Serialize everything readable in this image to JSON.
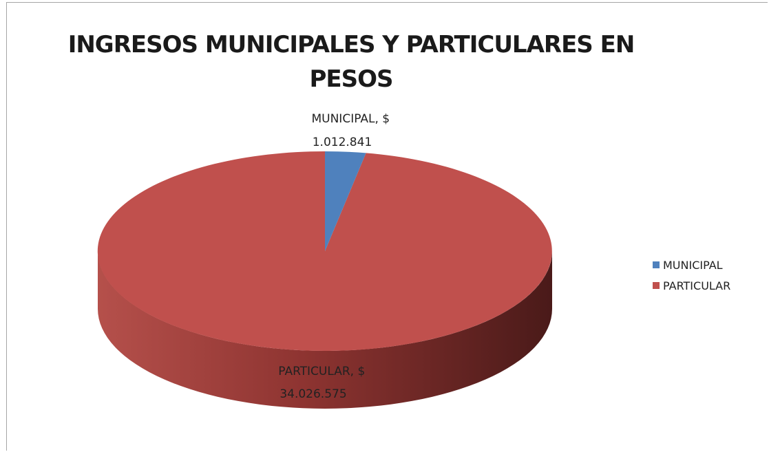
{
  "chart_data": {
    "type": "pie",
    "style": "3d",
    "title": "INGRESOS MUNICIPALES Y PARTICULARES EN PESOS",
    "title_lines": [
      "INGRESOS MUNICIPALES Y PARTICULARES EN",
      "PESOS"
    ],
    "slices": [
      {
        "name": "MUNICIPAL",
        "value": 1012841,
        "color": "#4f81bd",
        "label_lines": [
          "MUNICIPAL, $",
          "1.012.841"
        ]
      },
      {
        "name": "PARTICULAR",
        "value": 34026575,
        "color": "#c0504d",
        "label_lines": [
          "PARTICULAR, $",
          "34.026.575"
        ]
      }
    ],
    "legend": {
      "position": "right",
      "items": [
        {
          "label": "MUNICIPAL",
          "color": "#4f81bd"
        },
        {
          "label": "PARTICULAR",
          "color": "#c0504d"
        }
      ]
    }
  }
}
